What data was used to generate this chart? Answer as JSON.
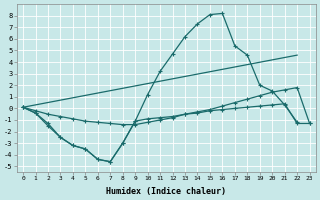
{
  "background_color": "#c8e8e8",
  "grid_color": "#ffffff",
  "line_color": "#1a6b6b",
  "xlabel": "Humidex (Indice chaleur)",
  "xlim": [
    -0.5,
    23.5
  ],
  "ylim": [
    -5.5,
    9.0
  ],
  "xticks": [
    0,
    1,
    2,
    3,
    4,
    5,
    6,
    7,
    8,
    9,
    10,
    11,
    12,
    13,
    14,
    15,
    16,
    17,
    18,
    19,
    20,
    21,
    22,
    23
  ],
  "yticks": [
    -5,
    -4,
    -3,
    -2,
    -1,
    0,
    1,
    2,
    3,
    4,
    5,
    6,
    7,
    8
  ],
  "line1_x": [
    0,
    1,
    2,
    3,
    4,
    5,
    6,
    7,
    8,
    9,
    10,
    11,
    12,
    13,
    14,
    15,
    16,
    17,
    18,
    19,
    20,
    21,
    22
  ],
  "line1_y": [
    0.1,
    -0.4,
    -1.3,
    -2.5,
    -3.2,
    -3.5,
    -4.4,
    -4.6,
    -3.0,
    -1.1,
    1.2,
    3.2,
    4.7,
    6.2,
    7.3,
    8.1,
    8.2,
    5.4,
    4.6,
    2.0,
    1.5,
    0.3,
    -1.2
  ],
  "line2_x": [
    0,
    1,
    2,
    3,
    4,
    5,
    6,
    7,
    8,
    9,
    10,
    11,
    12,
    13,
    14,
    15,
    16,
    17,
    18,
    19,
    20,
    21,
    22,
    23
  ],
  "line2_y": [
    0.1,
    -0.4,
    -1.5,
    -2.5,
    -3.2,
    -3.5,
    -4.4,
    -4.6,
    -3.0,
    -1.1,
    -0.9,
    -0.8,
    -0.7,
    -0.5,
    -0.4,
    -0.2,
    -0.1,
    0.0,
    0.1,
    0.2,
    0.3,
    0.4,
    -1.3,
    -1.3
  ],
  "line3_x": [
    0,
    1,
    2,
    3,
    4,
    5,
    6,
    7,
    8,
    9,
    10,
    11,
    12,
    13,
    14,
    15,
    16,
    17,
    18,
    19,
    20,
    21,
    22,
    23
  ],
  "line3_y": [
    0.1,
    -0.2,
    -0.5,
    -0.7,
    -0.9,
    -1.1,
    -1.2,
    -1.3,
    -1.4,
    -1.4,
    -1.2,
    -1.0,
    -0.8,
    -0.5,
    -0.3,
    -0.1,
    0.2,
    0.5,
    0.8,
    1.1,
    1.4,
    1.6,
    1.8,
    -1.3
  ],
  "line4_x": [
    0,
    22
  ],
  "line4_y": [
    0.1,
    4.6
  ],
  "marker": "+",
  "markersize": 3,
  "linewidth": 0.9
}
